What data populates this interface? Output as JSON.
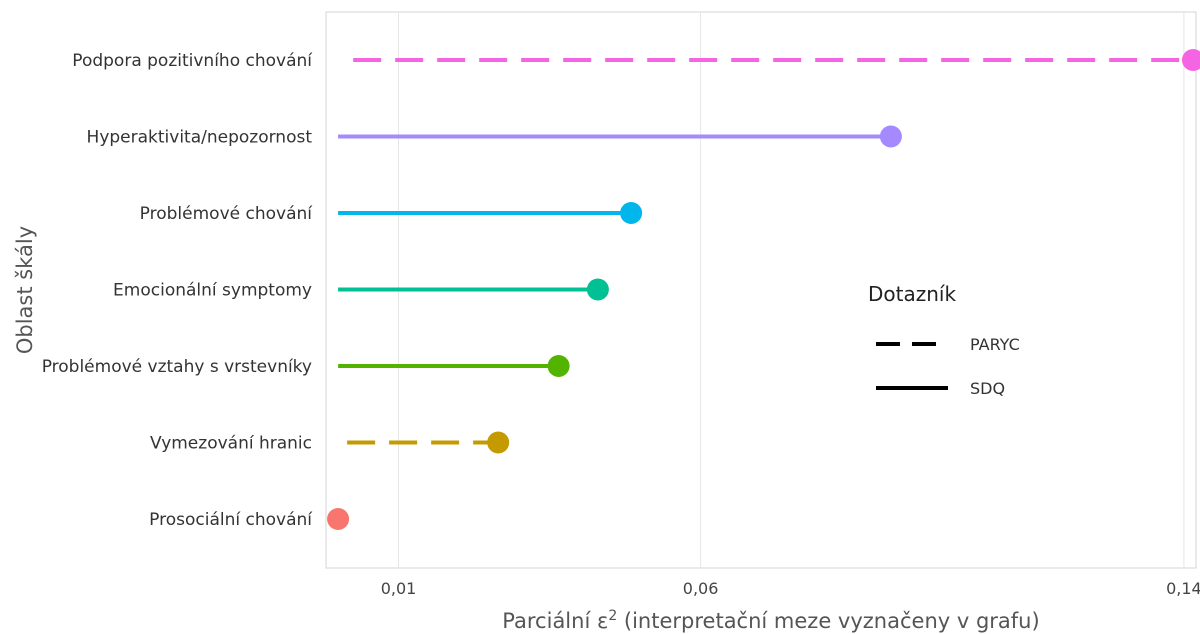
{
  "chart_data": {
    "type": "lollipop",
    "title": "",
    "xlabel_main": "Parciální ε",
    "xlabel_sup": "2",
    "xlabel_suffix": " (interpretační meze vyznačeny v grafu)",
    "ylabel": "Oblast škály",
    "xticks": [
      {
        "value": 0.01,
        "label": "0,01"
      },
      {
        "value": 0.06,
        "label": "0,06"
      },
      {
        "value": 0.14,
        "label": "0,14"
      }
    ],
    "xlim": [
      -0.002,
      0.142
    ],
    "grid": true,
    "legend": {
      "title": "Dotazník",
      "position": "right",
      "entries": [
        {
          "label": "PARYC",
          "linetype": "dashed"
        },
        {
          "label": "SDQ",
          "linetype": "solid"
        }
      ]
    },
    "categories": [
      "Podpora pozitivního chování",
      "Hyperaktivita/nepozornost",
      "Problémové chování",
      "Emocionální symptomy",
      "Problémové vztahy s vrstevníky",
      "Vymezování hranic",
      "Prosociální chování"
    ],
    "points": [
      {
        "category": "Podpora pozitivního chování",
        "questionnaire": "PARYC",
        "start": 0.0025,
        "value": 0.1415,
        "color": "#F564E3"
      },
      {
        "category": "Hyperaktivita/nepozornost",
        "questionnaire": "SDQ",
        "start": 0.0,
        "value": 0.0915,
        "color": "#A58AFF"
      },
      {
        "category": "Problémové chování",
        "questionnaire": "SDQ",
        "start": 0.0,
        "value": 0.0485,
        "color": "#00B6EB"
      },
      {
        "category": "Emocionální symptomy",
        "questionnaire": "SDQ",
        "start": 0.0,
        "value": 0.043,
        "color": "#00C094"
      },
      {
        "category": "Problémové vztahy s vrstevníky",
        "questionnaire": "SDQ",
        "start": 0.0,
        "value": 0.0365,
        "color": "#53B400"
      },
      {
        "category": "Vymezování hranic",
        "questionnaire": "PARYC",
        "start": 0.0015,
        "value": 0.0265,
        "color": "#C49A00"
      },
      {
        "category": "Prosociální chování",
        "questionnaire": "SDQ",
        "start": 0.0,
        "value": 0.0,
        "color": "#F8766D"
      }
    ]
  }
}
